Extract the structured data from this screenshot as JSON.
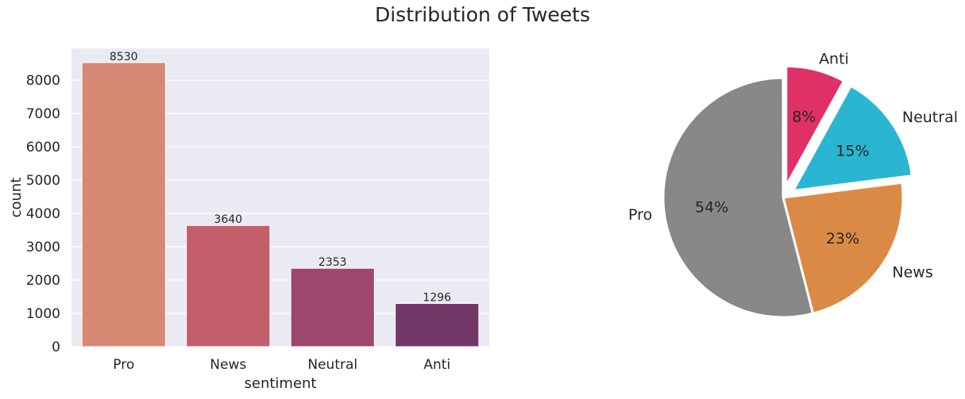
{
  "suptitle": "Distribution of Tweets",
  "chart_data": [
    {
      "type": "bar",
      "categories": [
        "Pro",
        "News",
        "Neutral",
        "Anti"
      ],
      "values": [
        8530,
        3640,
        2353,
        1296
      ],
      "bar_labels": [
        "8530",
        "3640",
        "2353",
        "1296"
      ],
      "colors": [
        "#D68873",
        "#C25F6B",
        "#9C476B",
        "#723667"
      ],
      "xlabel": "sentiment",
      "ylabel": "count",
      "ylim": [
        0,
        8956
      ],
      "yticks": [
        0,
        1000,
        2000,
        3000,
        4000,
        5000,
        6000,
        7000,
        8000
      ],
      "ytick_labels": [
        "0",
        "1000",
        "2000",
        "3000",
        "4000",
        "5000",
        "6000",
        "7000",
        "8000"
      ],
      "grid": true,
      "background": "#EAEAF2"
    },
    {
      "type": "pie",
      "labels": [
        "Anti",
        "Neutral",
        "News",
        "Pro"
      ],
      "values": [
        8,
        15,
        23,
        54
      ],
      "pct_labels": [
        "8%",
        "15%",
        "23%",
        "54%"
      ],
      "colors": [
        "#E03167",
        "#2AB6D1",
        "#DB8A46",
        "#888888"
      ],
      "exploded": [
        true,
        true,
        false,
        false
      ],
      "start": "top",
      "direction": "clockwise"
    }
  ]
}
